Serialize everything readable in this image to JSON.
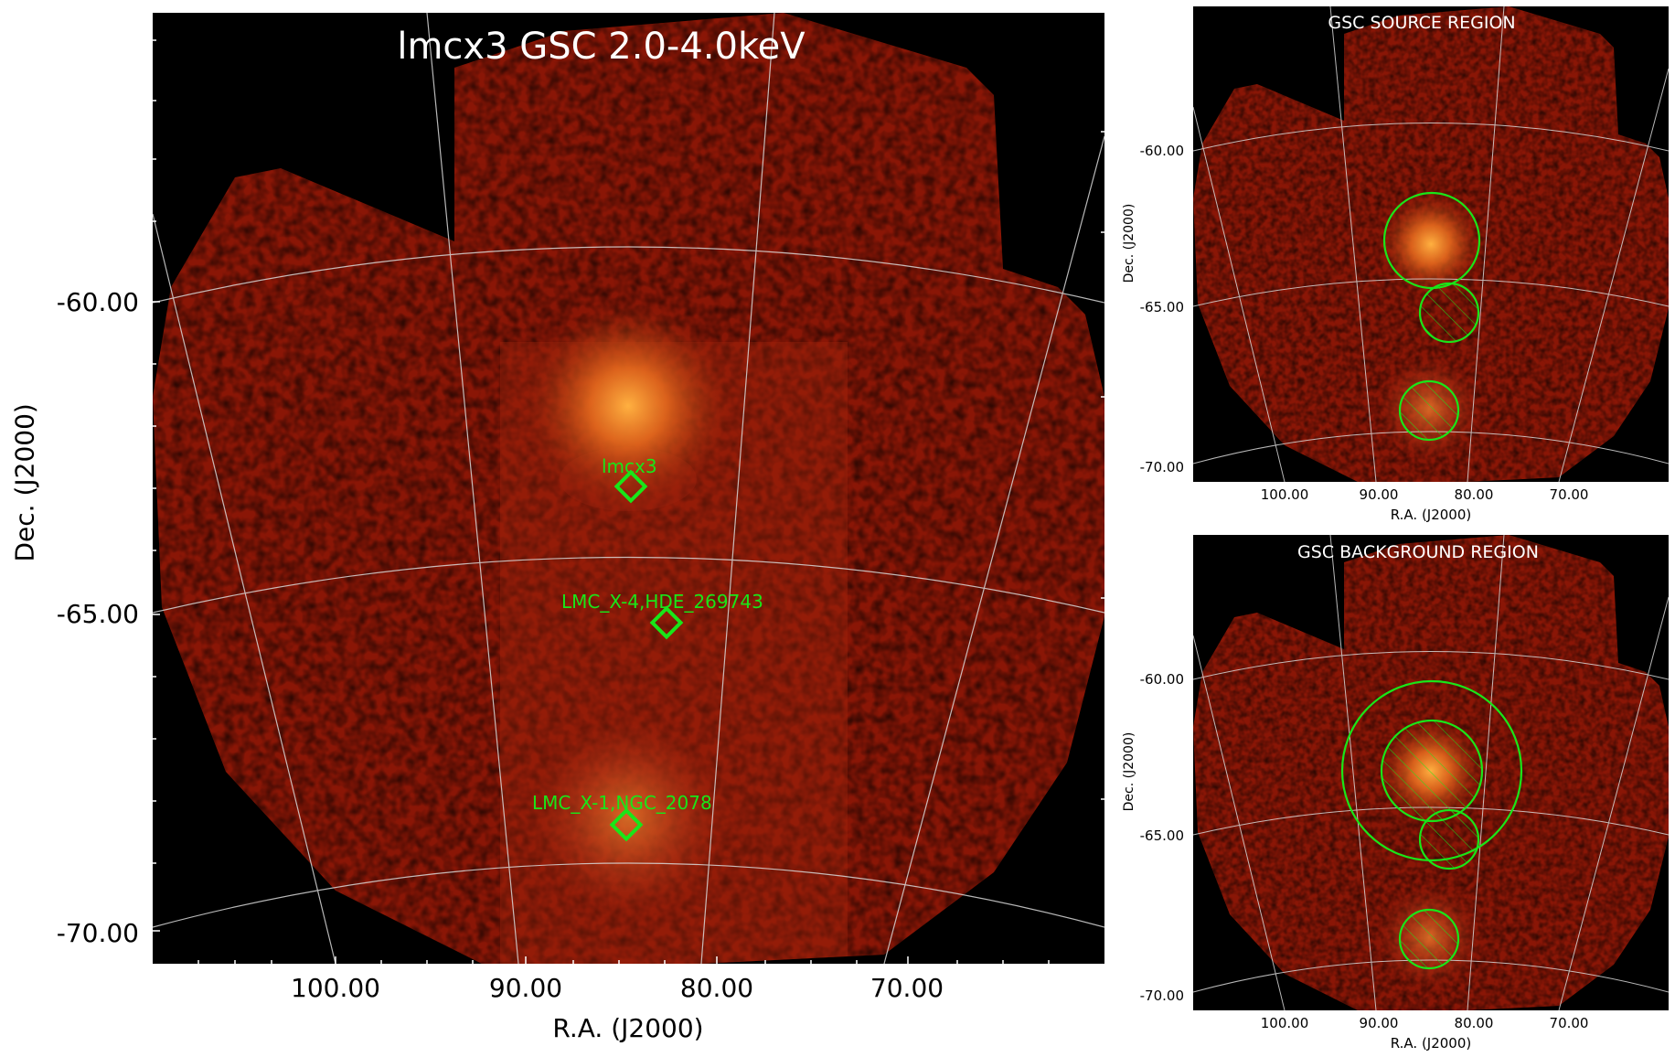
{
  "main": {
    "title": "lmcx3 GSC 2.0-4.0keV",
    "xlabel": "R.A. (J2000)",
    "ylabel": "Dec. (J2000)",
    "yticks": [
      "-60.00",
      "-65.00",
      "-70.00"
    ],
    "xticks": [
      "100.00",
      "90.00",
      "80.00",
      "70.00"
    ],
    "sources": [
      {
        "label": "lmcx3"
      },
      {
        "label": "LMC_X-4,HDE_269743"
      },
      {
        "label": "LMC_X-1,NGC_2078"
      }
    ]
  },
  "source_panel": {
    "title": "GSC SOURCE REGION",
    "xlabel": "R.A. (J2000)",
    "ylabel": "Dec. (J2000)",
    "yticks": [
      "-60.00",
      "-65.00",
      "-70.00"
    ],
    "xticks": [
      "100.00",
      "90.00",
      "80.00",
      "70.00"
    ]
  },
  "background_panel": {
    "title": "GSC BACKGROUND REGION",
    "xlabel": "R.A. (J2000)",
    "ylabel": "Dec. (J2000)",
    "yticks": [
      "-60.00",
      "-65.00",
      "-70.00"
    ],
    "xticks": [
      "100.00",
      "90.00",
      "80.00",
      "70.00"
    ]
  },
  "colors": {
    "background": "#000000",
    "sky_emission": "#8a1606",
    "bright_source": "#f08a28",
    "region_marker": "#19e619",
    "grid": "#d8d8d8"
  }
}
